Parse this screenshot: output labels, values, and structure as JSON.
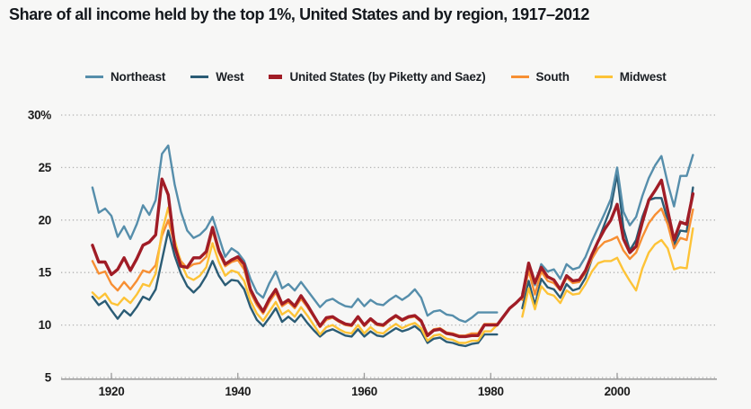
{
  "title": "Share of all income held by the top 1%, United States and by region, 1917–2012",
  "background_color": "#f7f7f6",
  "chart_data": {
    "type": "line",
    "frequency": "annual",
    "xlim": [
      1917,
      2012
    ],
    "ylim": [
      5,
      30
    ],
    "grid": "horizontal dotted",
    "legend_position": "top",
    "x_axis": {
      "ticks": [
        1920,
        1940,
        1960,
        1980,
        2000
      ]
    },
    "y_axis": {
      "ticks": [
        30,
        25,
        20,
        15,
        10,
        5
      ],
      "labels": [
        "30%",
        "25",
        "20",
        "15",
        "10",
        "5"
      ]
    },
    "regional_data_gap_years": [
      1982,
      1983,
      1984
    ],
    "series": [
      {
        "name": "Northeast",
        "color": "#568eab",
        "values": [
          23.1,
          20.7,
          21.1,
          20.4,
          18.4,
          19.4,
          18.2,
          19.6,
          21.4,
          20.5,
          21.9,
          26.3,
          27.1,
          23.4,
          20.8,
          19.0,
          18.3,
          18.6,
          19.2,
          20.3,
          18.4,
          16.5,
          17.3,
          16.9,
          16.1,
          14.4,
          13.1,
          12.6,
          14.0,
          15.1,
          13.5,
          13.9,
          13.3,
          14.1,
          13.3,
          12.5,
          11.7,
          12.3,
          12.5,
          12.1,
          11.8,
          11.7,
          12.5,
          11.8,
          12.4,
          12.0,
          11.9,
          12.4,
          12.8,
          12.4,
          12.8,
          13.4,
          12.6,
          10.9,
          11.3,
          11.4,
          11.0,
          10.9,
          10.5,
          10.3,
          10.7,
          11.2,
          11.2,
          11.2,
          11.2,
          null,
          null,
          null,
          13.0,
          15.4,
          13.8,
          15.8,
          15.1,
          15.3,
          14.4,
          15.8,
          15.3,
          15.5,
          16.5,
          18.0,
          19.3,
          20.6,
          22.0,
          25.0,
          20.8,
          19.5,
          20.3,
          22.3,
          24.0,
          25.2,
          26.1,
          23.5,
          21.3,
          24.2,
          24.2,
          26.2
        ]
      },
      {
        "name": "West",
        "color": "#2b5c75",
        "values": [
          12.7,
          11.9,
          12.3,
          11.4,
          10.6,
          11.4,
          10.9,
          11.7,
          12.7,
          12.4,
          13.4,
          16.2,
          19.0,
          16.6,
          14.9,
          13.7,
          13.1,
          13.7,
          14.7,
          16.1,
          14.7,
          13.8,
          14.3,
          14.2,
          13.4,
          11.7,
          10.5,
          9.9,
          10.7,
          11.6,
          10.3,
          10.8,
          10.3,
          11.0,
          10.2,
          9.5,
          8.9,
          9.4,
          9.6,
          9.3,
          9.0,
          8.9,
          9.6,
          8.9,
          9.4,
          9.0,
          8.9,
          9.3,
          9.7,
          9.4,
          9.6,
          9.9,
          9.4,
          8.3,
          8.7,
          8.8,
          8.4,
          8.3,
          8.1,
          8.0,
          8.2,
          8.3,
          9.1,
          9.1,
          9.1,
          null,
          null,
          null,
          11.6,
          14.2,
          11.9,
          14.4,
          13.6,
          13.4,
          12.6,
          13.9,
          13.3,
          13.5,
          14.5,
          16.3,
          18.0,
          19.6,
          21.2,
          24.4,
          19.2,
          17.1,
          18.1,
          20.3,
          21.9,
          22.1,
          22.1,
          20.0,
          17.6,
          19.0,
          18.9,
          23.1
        ]
      },
      {
        "name": "United States (by Piketty and Saez)",
        "color": "#a01c26",
        "thick": true,
        "values": [
          17.6,
          16.0,
          16.0,
          14.8,
          15.3,
          16.4,
          15.2,
          16.3,
          17.6,
          17.9,
          18.6,
          23.9,
          22.4,
          17.5,
          15.6,
          15.5,
          16.4,
          16.4,
          17.0,
          19.3,
          17.1,
          15.8,
          16.2,
          16.5,
          15.8,
          13.4,
          12.2,
          11.3,
          12.5,
          13.4,
          12.0,
          12.4,
          11.8,
          12.8,
          11.9,
          10.9,
          9.9,
          10.7,
          10.8,
          10.4,
          10.1,
          10.0,
          10.8,
          10.0,
          10.6,
          10.1,
          10.0,
          10.5,
          10.9,
          10.5,
          10.8,
          10.9,
          10.4,
          9.0,
          9.5,
          9.6,
          9.2,
          9.1,
          8.9,
          8.9,
          9.0,
          9.0,
          10.0,
          10.0,
          10.0,
          10.8,
          11.6,
          12.1,
          12.7,
          15.9,
          14.0,
          15.5,
          14.6,
          14.3,
          13.4,
          14.7,
          14.2,
          14.3,
          15.2,
          16.7,
          18.0,
          19.1,
          20.0,
          21.5,
          18.2,
          16.9,
          17.5,
          19.8,
          21.9,
          22.8,
          23.8,
          20.9,
          18.1,
          19.8,
          19.6,
          22.5
        ]
      },
      {
        "name": "South",
        "color": "#f78f33",
        "values": [
          16.1,
          14.9,
          15.1,
          13.9,
          13.3,
          14.1,
          13.4,
          14.2,
          15.2,
          15.0,
          15.7,
          18.5,
          20.0,
          17.7,
          16.1,
          15.4,
          15.8,
          15.9,
          16.5,
          19.0,
          16.9,
          15.6,
          16.0,
          16.2,
          15.3,
          13.1,
          11.9,
          11.1,
          12.2,
          13.1,
          11.8,
          12.2,
          11.6,
          12.5,
          11.7,
          10.8,
          9.8,
          10.5,
          10.7,
          10.3,
          10.0,
          9.9,
          10.7,
          9.9,
          10.5,
          10.0,
          9.9,
          10.4,
          10.8,
          10.4,
          10.7,
          10.8,
          10.3,
          9.1,
          9.6,
          9.7,
          9.3,
          9.2,
          9.0,
          9.0,
          9.2,
          9.2,
          10.1,
          10.1,
          10.1,
          null,
          null,
          null,
          12.4,
          15.2,
          12.9,
          15.1,
          14.2,
          14.0,
          13.3,
          14.5,
          14.0,
          14.1,
          15.0,
          16.3,
          17.3,
          17.9,
          18.1,
          18.4,
          17.1,
          16.3,
          16.9,
          18.4,
          19.7,
          20.5,
          21.1,
          19.6,
          17.3,
          18.3,
          18.1,
          21.0
        ]
      },
      {
        "name": "Midwest",
        "color": "#fdc337",
        "values": [
          13.1,
          12.5,
          13.0,
          12.1,
          11.9,
          12.6,
          12.1,
          12.9,
          13.9,
          13.7,
          14.9,
          18.9,
          21.2,
          18.1,
          15.9,
          14.6,
          14.3,
          14.7,
          15.5,
          17.8,
          16.0,
          14.7,
          15.2,
          15.0,
          14.2,
          12.3,
          11.1,
          10.4,
          11.3,
          12.2,
          11.0,
          11.4,
          10.8,
          11.7,
          10.9,
          10.0,
          9.1,
          9.8,
          10.0,
          9.6,
          9.3,
          9.2,
          10.0,
          9.2,
          9.8,
          9.3,
          9.2,
          9.7,
          10.1,
          9.7,
          10.0,
          10.2,
          9.7,
          8.5,
          9.0,
          9.1,
          8.7,
          8.6,
          8.3,
          8.3,
          8.5,
          8.5,
          9.4,
          9.4,
          10.0,
          null,
          null,
          null,
          10.8,
          13.5,
          11.5,
          13.7,
          13.0,
          12.8,
          12.1,
          13.3,
          12.9,
          13.0,
          13.9,
          15.1,
          15.9,
          16.1,
          16.1,
          16.4,
          15.2,
          14.2,
          13.3,
          15.4,
          16.9,
          17.7,
          18.1,
          17.3,
          15.3,
          15.5,
          15.4,
          19.2
        ]
      }
    ]
  }
}
